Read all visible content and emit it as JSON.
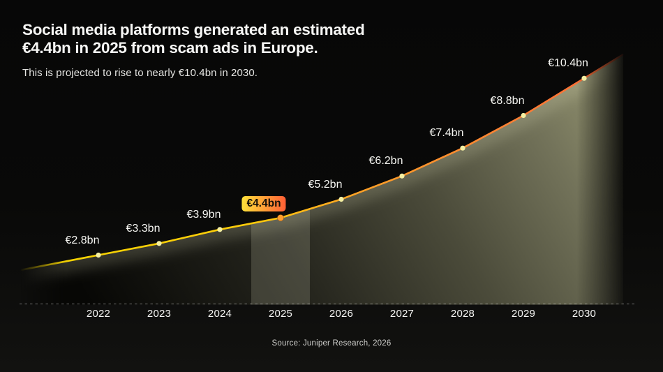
{
  "header": {
    "title_line1": "Social media platforms generated an estimated",
    "title_line2": "€4.4bn in 2025 from scam ads in Europe.",
    "subtitle": "This is projected to rise to nearly €10.4bn in 2030."
  },
  "source": "Source: Juniper Research, 2026",
  "chart_data": {
    "type": "area",
    "title": "Social media platforms generated an estimated €4.4bn in 2025 from scam ads in Europe.",
    "subtitle": "This is projected to rise to nearly €10.4bn in 2030.",
    "categories": [
      "2022",
      "2023",
      "2024",
      "2025",
      "2026",
      "2027",
      "2028",
      "2029",
      "2030"
    ],
    "values": [
      2.8,
      3.3,
      3.9,
      4.4,
      5.2,
      6.2,
      7.4,
      8.8,
      10.4
    ],
    "point_labels": [
      "€2.8bn",
      "€3.3bn",
      "€3.9bn",
      "€4.4bn",
      "€5.2bn",
      "€6.2bn",
      "€7.4bn",
      "€8.8bn",
      "€10.4bn"
    ],
    "unit": "€bn",
    "highlight_category": "2025",
    "highlight_label": "€4.4bn",
    "xlabel": "",
    "ylabel": "",
    "ylim": [
      0,
      11
    ],
    "grid": false,
    "legend": false,
    "baseline_style": "dashed",
    "colors": {
      "background": "#070707",
      "line_start": "#f2d400",
      "line_mid": "#ffa126",
      "line_end": "#ff6636",
      "dot": "#f4efa2",
      "highlight_dot": "#ff9d2e",
      "badge_start": "#ffe23a",
      "badge_end": "#ff5f35",
      "area_dark": "#070705",
      "area_light": "#92926f",
      "highlight_band": "rgba(247,247,220,0.16)",
      "baseline": "#d8d8d8",
      "text": "#f6f6f4"
    }
  }
}
